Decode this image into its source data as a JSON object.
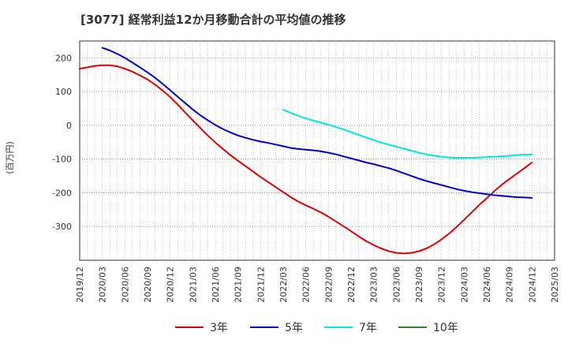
{
  "chart_data": {
    "type": "line",
    "title": "[3077]  経常利益12か月移動合計の平均値の推移",
    "xlabel": "",
    "ylabel": "(百万円)",
    "x_ticks": [
      "2019/12",
      "2020/03",
      "2020/06",
      "2020/09",
      "2020/12",
      "2021/03",
      "2021/06",
      "2021/09",
      "2021/12",
      "2022/03",
      "2022/06",
      "2022/09",
      "2022/12",
      "2023/03",
      "2023/06",
      "2023/09",
      "2023/12",
      "2024/03",
      "2024/06",
      "2024/09",
      "2024/12",
      "2025/03"
    ],
    "y_ticks": [
      200,
      100,
      0,
      -100,
      -200,
      -300
    ],
    "ylim": [
      -400,
      250
    ],
    "grid": true,
    "legend_position": "bottom",
    "series": [
      {
        "name": "3年",
        "color": "#dd0000",
        "x": [
          "2019/12",
          "2020/01",
          "2020/02",
          "2020/03",
          "2020/04",
          "2020/05",
          "2020/06",
          "2020/07",
          "2020/08",
          "2020/09",
          "2020/10",
          "2020/11",
          "2020/12",
          "2021/01",
          "2021/02",
          "2021/03",
          "2021/04",
          "2021/05",
          "2021/06",
          "2021/07",
          "2021/08",
          "2021/09",
          "2021/10",
          "2021/11",
          "2021/12",
          "2022/01",
          "2022/02",
          "2022/03",
          "2022/04",
          "2022/05",
          "2022/06",
          "2022/07",
          "2022/08",
          "2022/09",
          "2022/10",
          "2022/11",
          "2022/12",
          "2023/01",
          "2023/02",
          "2023/03",
          "2023/04",
          "2023/05",
          "2023/06",
          "2023/07",
          "2023/08",
          "2023/09",
          "2023/10",
          "2023/11",
          "2023/12",
          "2024/01",
          "2024/02",
          "2024/03",
          "2024/04",
          "2024/05",
          "2024/06",
          "2024/07",
          "2024/08",
          "2024/09",
          "2024/10",
          "2024/11",
          "2024/12"
        ],
        "values": [
          168,
          172,
          176,
          178,
          178,
          175,
          168,
          159,
          148,
          136,
          121,
          103,
          84,
          62,
          38,
          15,
          -8,
          -30,
          -51,
          -70,
          -88,
          -105,
          -121,
          -137,
          -153,
          -168,
          -183,
          -198,
          -213,
          -226,
          -237,
          -247,
          -258,
          -271,
          -285,
          -299,
          -314,
          -329,
          -343,
          -355,
          -365,
          -373,
          -378,
          -380,
          -378,
          -373,
          -365,
          -353,
          -338,
          -321,
          -301,
          -280,
          -258,
          -236,
          -216,
          -195,
          -176,
          -159,
          -143,
          -127,
          -110
        ]
      },
      {
        "name": "5年",
        "color": "#0000cc",
        "x": [
          "2020/03",
          "2020/04",
          "2020/05",
          "2020/06",
          "2020/07",
          "2020/08",
          "2020/09",
          "2020/10",
          "2020/11",
          "2020/12",
          "2021/01",
          "2021/02",
          "2021/03",
          "2021/04",
          "2021/05",
          "2021/06",
          "2021/07",
          "2021/08",
          "2021/09",
          "2021/10",
          "2021/11",
          "2021/12",
          "2022/01",
          "2022/02",
          "2022/03",
          "2022/04",
          "2022/05",
          "2022/06",
          "2022/07",
          "2022/08",
          "2022/09",
          "2022/10",
          "2022/11",
          "2022/12",
          "2023/01",
          "2023/02",
          "2023/03",
          "2023/04",
          "2023/05",
          "2023/06",
          "2023/07",
          "2023/08",
          "2023/09",
          "2023/10",
          "2023/11",
          "2023/12",
          "2024/01",
          "2024/02",
          "2024/03",
          "2024/04",
          "2024/05",
          "2024/06",
          "2024/07",
          "2024/08",
          "2024/09",
          "2024/10",
          "2024/11",
          "2024/12"
        ],
        "values": [
          230,
          222,
          212,
          200,
          186,
          172,
          157,
          141,
          123,
          104,
          85,
          66,
          47,
          30,
          15,
          1,
          -11,
          -21,
          -30,
          -37,
          -43,
          -48,
          -52,
          -57,
          -62,
          -67,
          -70,
          -72,
          -74,
          -77,
          -81,
          -86,
          -92,
          -98,
          -104,
          -110,
          -115,
          -121,
          -127,
          -134,
          -142,
          -150,
          -158,
          -165,
          -171,
          -177,
          -183,
          -189,
          -194,
          -198,
          -201,
          -204,
          -207,
          -209,
          -211,
          -213,
          -214,
          -215
        ]
      },
      {
        "name": "7年",
        "color": "#00e5e5",
        "x": [
          "2022/03",
          "2022/04",
          "2022/05",
          "2022/06",
          "2022/07",
          "2022/08",
          "2022/09",
          "2022/10",
          "2022/11",
          "2022/12",
          "2023/01",
          "2023/02",
          "2023/03",
          "2023/04",
          "2023/05",
          "2023/06",
          "2023/07",
          "2023/08",
          "2023/09",
          "2023/10",
          "2023/11",
          "2023/12",
          "2024/01",
          "2024/02",
          "2024/03",
          "2024/04",
          "2024/05",
          "2024/06",
          "2024/07",
          "2024/08",
          "2024/09",
          "2024/10",
          "2024/11",
          "2024/12"
        ],
        "values": [
          46,
          37,
          28,
          21,
          14,
          8,
          2,
          -5,
          -12,
          -20,
          -28,
          -36,
          -44,
          -51,
          -57,
          -63,
          -69,
          -75,
          -81,
          -86,
          -90,
          -93,
          -95,
          -96,
          -96,
          -96,
          -95,
          -94,
          -93,
          -92,
          -90,
          -88,
          -87,
          -86
        ]
      },
      {
        "name": "10年",
        "color": "#228b22",
        "x": [],
        "values": []
      }
    ]
  }
}
